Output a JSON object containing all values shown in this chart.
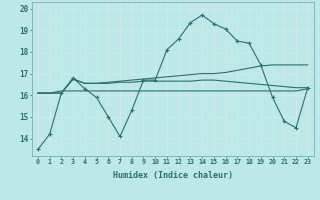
{
  "xlabel": "Humidex (Indice chaleur)",
  "x": [
    0,
    1,
    2,
    3,
    4,
    5,
    6,
    7,
    8,
    9,
    10,
    11,
    12,
    13,
    14,
    15,
    16,
    17,
    18,
    19,
    20,
    21,
    22,
    23
  ],
  "y_main": [
    13.5,
    14.2,
    16.1,
    16.8,
    16.3,
    15.9,
    15.0,
    14.1,
    15.3,
    16.7,
    16.7,
    18.1,
    18.6,
    19.35,
    19.7,
    19.3,
    19.05,
    18.5,
    18.4,
    17.4,
    15.9,
    14.8,
    14.5,
    16.35
  ],
  "y_trend_flat": [
    16.1,
    16.1,
    16.2,
    16.2,
    16.2,
    16.2,
    16.2,
    16.2,
    16.2,
    16.2,
    16.2,
    16.2,
    16.2,
    16.2,
    16.2,
    16.2,
    16.2,
    16.2,
    16.2,
    16.2,
    16.2,
    16.2,
    16.2,
    16.3
  ],
  "y_trend_slight": [
    16.1,
    16.1,
    16.1,
    16.75,
    16.55,
    16.55,
    16.55,
    16.6,
    16.6,
    16.65,
    16.65,
    16.65,
    16.65,
    16.65,
    16.7,
    16.7,
    16.65,
    16.6,
    16.55,
    16.5,
    16.45,
    16.4,
    16.35,
    16.35
  ],
  "y_trend_rising": [
    16.1,
    16.1,
    16.1,
    16.75,
    16.55,
    16.55,
    16.6,
    16.65,
    16.7,
    16.75,
    16.8,
    16.85,
    16.9,
    16.95,
    17.0,
    17.0,
    17.05,
    17.15,
    17.25,
    17.35,
    17.4,
    17.4,
    17.4,
    17.4
  ],
  "bg_color": "#bde8e8",
  "line_color": "#2a7070",
  "grid_color": "#d0eaea",
  "ylim": [
    13.2,
    20.3
  ],
  "xlim": [
    -0.5,
    23.5
  ],
  "yticks": [
    14,
    15,
    16,
    17,
    18,
    19,
    20
  ],
  "marker": "+"
}
